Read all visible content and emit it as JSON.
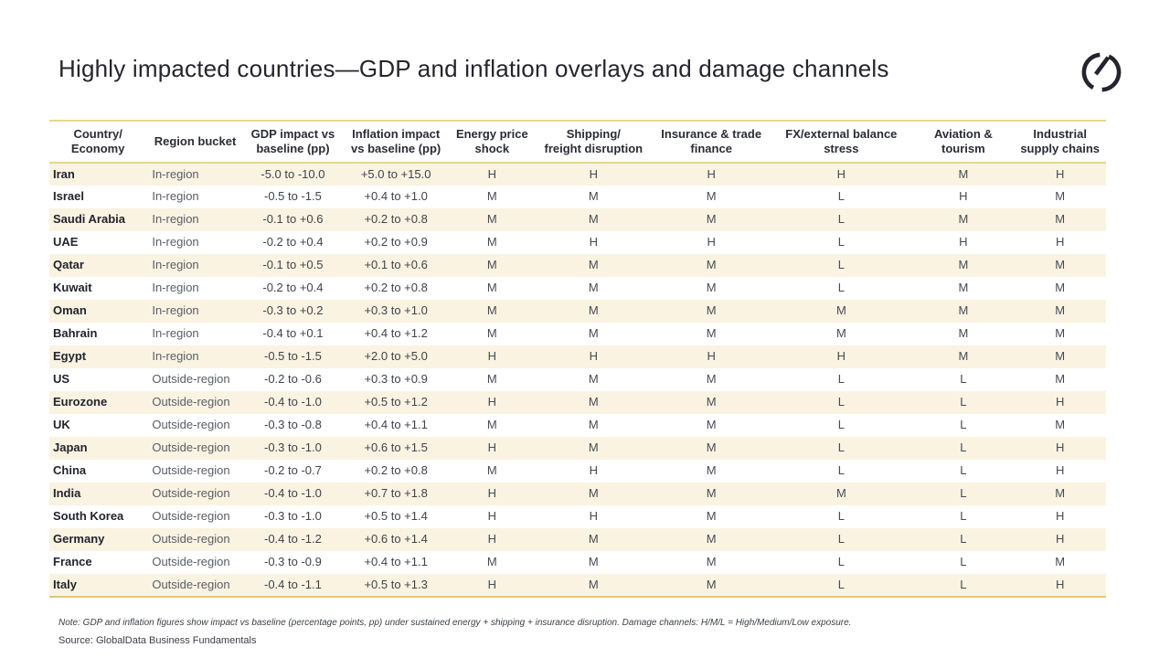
{
  "slide": {
    "title": "Highly impacted countries—GDP and inflation overlays and damage channels",
    "note": "Note: GDP and inflation figures show impact vs baseline (percentage points, pp) under sustained energy + shipping + insurance disruption. Damage channels: H/M/L = High/Medium/Low exposure.",
    "source": "Source: GlobalData Business Fundamentals"
  },
  "colors": {
    "accent_gold_rule": "#e9d58f",
    "bottom_rule": "#e2c76f",
    "row_stripe": "#faf3e1",
    "title_text": "#24252d",
    "logo_ink": "#23242e"
  },
  "table": {
    "headers": [
      "Country/\nEconomy",
      "Region bucket",
      "GDP impact vs baseline (pp)",
      "Inflation impact vs baseline (pp)",
      "Energy price shock",
      "Shipping/\nfreight disruption",
      "Insurance & trade finance",
      "FX/external balance stress",
      "Aviation & tourism",
      "Industrial supply chains"
    ],
    "channel_columns": [
      "Energy price shock",
      "Shipping/freight disruption",
      "Insurance & trade finance",
      "FX/external balance stress",
      "Aviation & tourism",
      "Industrial supply chains"
    ],
    "rows": [
      {
        "country": "Iran",
        "region": "In-region",
        "gdp": "-5.0 to -10.0",
        "inflation": "+5.0 to +15.0",
        "channels": [
          "H",
          "H",
          "H",
          "H",
          "M",
          "H"
        ]
      },
      {
        "country": "Israel",
        "region": "In-region",
        "gdp": "-0.5 to -1.5",
        "inflation": "+0.4 to +1.0",
        "channels": [
          "M",
          "M",
          "M",
          "L",
          "H",
          "M"
        ]
      },
      {
        "country": "Saudi Arabia",
        "region": "In-region",
        "gdp": "-0.1 to +0.6",
        "inflation": "+0.2 to +0.8",
        "channels": [
          "M",
          "M",
          "M",
          "L",
          "M",
          "M"
        ]
      },
      {
        "country": "UAE",
        "region": "In-region",
        "gdp": "-0.2 to +0.4",
        "inflation": "+0.2 to +0.9",
        "channels": [
          "M",
          "H",
          "H",
          "L",
          "H",
          "H"
        ]
      },
      {
        "country": "Qatar",
        "region": "In-region",
        "gdp": "-0.1 to +0.5",
        "inflation": "+0.1 to +0.6",
        "channels": [
          "M",
          "M",
          "M",
          "L",
          "M",
          "M"
        ]
      },
      {
        "country": "Kuwait",
        "region": "In-region",
        "gdp": "-0.2 to +0.4",
        "inflation": "+0.2 to +0.8",
        "channels": [
          "M",
          "M",
          "M",
          "L",
          "M",
          "M"
        ]
      },
      {
        "country": "Oman",
        "region": "In-region",
        "gdp": "-0.3 to +0.2",
        "inflation": "+0.3 to +1.0",
        "channels": [
          "M",
          "M",
          "M",
          "M",
          "M",
          "M"
        ]
      },
      {
        "country": "Bahrain",
        "region": "In-region",
        "gdp": "-0.4 to +0.1",
        "inflation": "+0.4 to +1.2",
        "channels": [
          "M",
          "M",
          "M",
          "M",
          "M",
          "M"
        ]
      },
      {
        "country": "Egypt",
        "region": "In-region",
        "gdp": "-0.5 to -1.5",
        "inflation": "+2.0 to +5.0",
        "channels": [
          "H",
          "H",
          "H",
          "H",
          "M",
          "M"
        ]
      },
      {
        "country": "US",
        "region": "Outside-region",
        "gdp": "-0.2 to -0.6",
        "inflation": "+0.3 to +0.9",
        "channels": [
          "M",
          "M",
          "M",
          "L",
          "L",
          "M"
        ]
      },
      {
        "country": "Eurozone",
        "region": "Outside-region",
        "gdp": "-0.4 to -1.0",
        "inflation": "+0.5 to +1.2",
        "channels": [
          "H",
          "M",
          "M",
          "L",
          "L",
          "H"
        ]
      },
      {
        "country": "UK",
        "region": "Outside-region",
        "gdp": "-0.3 to -0.8",
        "inflation": "+0.4 to +1.1",
        "channels": [
          "M",
          "M",
          "M",
          "L",
          "L",
          "M"
        ]
      },
      {
        "country": "Japan",
        "region": "Outside-region",
        "gdp": "-0.3 to -1.0",
        "inflation": "+0.6 to +1.5",
        "channels": [
          "H",
          "M",
          "M",
          "L",
          "L",
          "H"
        ]
      },
      {
        "country": "China",
        "region": "Outside-region",
        "gdp": "-0.2 to -0.7",
        "inflation": "+0.2 to +0.8",
        "channels": [
          "M",
          "H",
          "M",
          "L",
          "L",
          "H"
        ]
      },
      {
        "country": "India",
        "region": "Outside-region",
        "gdp": "-0.4 to -1.0",
        "inflation": "+0.7 to +1.8",
        "channels": [
          "H",
          "M",
          "M",
          "M",
          "L",
          "M"
        ]
      },
      {
        "country": "South Korea",
        "region": "Outside-region",
        "gdp": "-0.3 to -1.0",
        "inflation": "+0.5 to +1.4",
        "channels": [
          "H",
          "H",
          "M",
          "L",
          "L",
          "H"
        ]
      },
      {
        "country": "Germany",
        "region": "Outside-region",
        "gdp": "-0.4 to -1.2",
        "inflation": "+0.6 to +1.4",
        "channels": [
          "H",
          "M",
          "M",
          "L",
          "L",
          "H"
        ]
      },
      {
        "country": "France",
        "region": "Outside-region",
        "gdp": "-0.3 to -0.9",
        "inflation": "+0.4 to +1.1",
        "channels": [
          "M",
          "M",
          "M",
          "L",
          "L",
          "M"
        ]
      },
      {
        "country": "Italy",
        "region": "Outside-region",
        "gdp": "-0.4 to -1.1",
        "inflation": "+0.5 to +1.3",
        "channels": [
          "H",
          "M",
          "M",
          "L",
          "L",
          "H"
        ]
      }
    ]
  }
}
